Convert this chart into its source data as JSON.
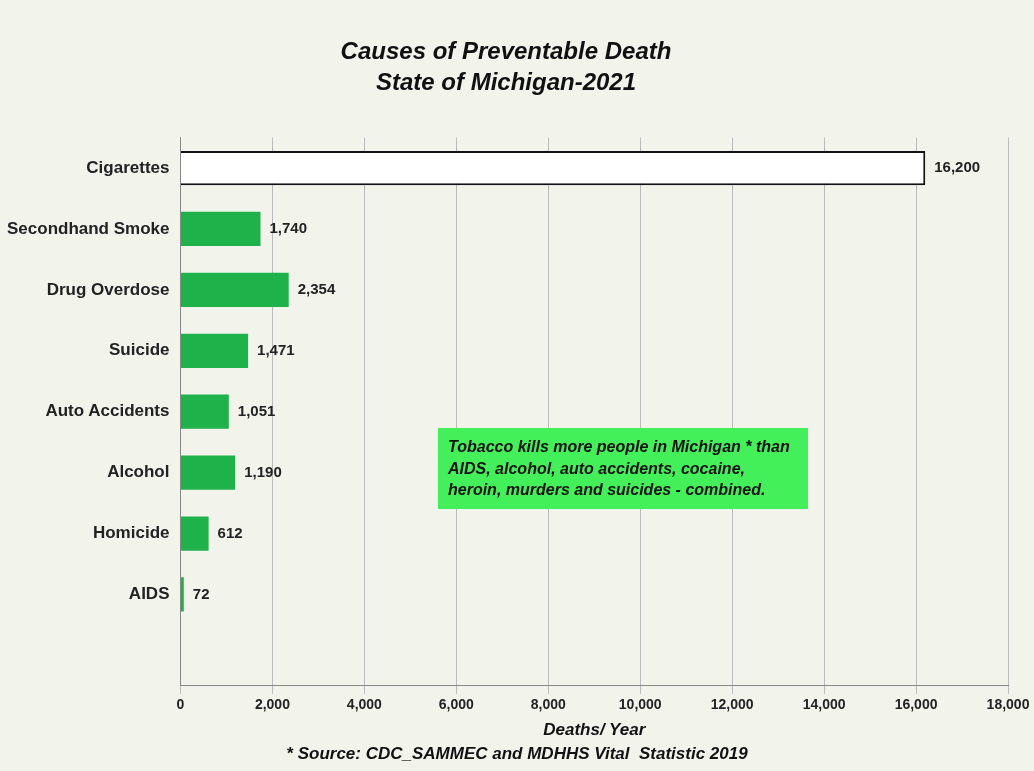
{
  "chart_data": {
    "type": "bar",
    "orientation": "horizontal",
    "title": "Causes of Preventable Death",
    "subtitle": "State of Michigan-2021",
    "xlabel": "Deaths/ Year",
    "categories": [
      "Cigarettes",
      "Secondhand Smoke",
      "Drug Overdose",
      "Suicide",
      "Auto Accidents",
      "Alcohol",
      "Homicide",
      "AIDS",
      null
    ],
    "values": [
      16200,
      1740,
      2354,
      1471,
      1051,
      1190,
      612,
      72,
      null
    ],
    "colors": [
      "#ffffff",
      "#1fb14a",
      "#1fb14a",
      "#1fb14a",
      "#1fb14a",
      "#1fb14a",
      "#1fb14a",
      "#1fb14a",
      "#1fb14a"
    ],
    "xlim": [
      0,
      18000
    ],
    "xticks": [
      {
        "value": 0,
        "label": "0"
      },
      {
        "value": 2000,
        "label": "2,000"
      },
      {
        "value": 4000,
        "label": "4,000"
      },
      {
        "value": 6000,
        "label": "6,000"
      },
      {
        "value": 8000,
        "label": "8,000"
      },
      {
        "value": 10000,
        "label": "10,000"
      },
      {
        "value": 12000,
        "label": "12,000"
      },
      {
        "value": 14000,
        "label": "14,000"
      },
      {
        "value": 16000,
        "label": "16,000"
      },
      {
        "value": 18000,
        "label": "18,000"
      }
    ],
    "grid": "x",
    "value_labels": [
      "16,200",
      "1,740",
      "2,354",
      "1,471",
      "1,051",
      "1,190",
      "612",
      "72",
      null
    ],
    "annotations": [
      "Tobacco kills more people in Michigan * than AIDS, alcohol, auto accidents, cocaine, heroin, murders and suicides - combined.",
      "* Source: CDC_SAMMEC and MDHHS Vital  Statistic 2019"
    ]
  }
}
